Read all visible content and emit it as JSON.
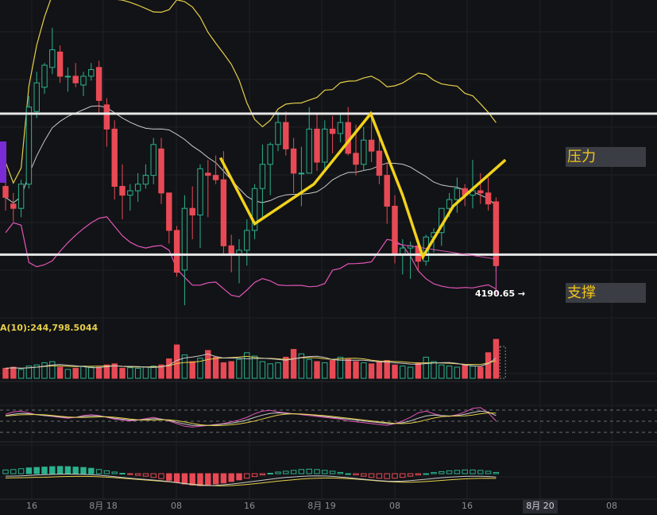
{
  "chart_data": [
    {
      "type": "candlestick",
      "panel": "price",
      "title": "",
      "levels": [
        {
          "name": "resistance",
          "label": "压力",
          "price": 4262
        },
        {
          "name": "support",
          "label": "支撑",
          "price": 4198
        }
      ],
      "last_price_label": "4190.65",
      "ohlc": [
        [
          4229,
          4236,
          4218,
          4224
        ],
        [
          4221,
          4226,
          4213,
          4219
        ],
        [
          4219,
          4232,
          4215,
          4230
        ],
        [
          4230,
          4270,
          4228,
          4265
        ],
        [
          4263,
          4281,
          4260,
          4276
        ],
        [
          4274,
          4285,
          4271,
          4284
        ],
        [
          4283,
          4301,
          4280,
          4291
        ],
        [
          4290,
          4293,
          4276,
          4279
        ],
        [
          4279,
          4283,
          4272,
          4279
        ],
        [
          4279,
          4285,
          4274,
          4276
        ],
        [
          4275,
          4281,
          4270,
          4279
        ],
        [
          4279,
          4285,
          4277,
          4282
        ],
        [
          4283,
          4286,
          4262,
          4268
        ],
        [
          4266,
          4269,
          4247,
          4255
        ],
        [
          4255,
          4259,
          4223,
          4229
        ],
        [
          4229,
          4239,
          4214,
          4225
        ],
        [
          4225,
          4230,
          4218,
          4227
        ],
        [
          4227,
          4235,
          4222,
          4230
        ],
        [
          4230,
          4239,
          4228,
          4234
        ],
        [
          4234,
          4251,
          4230,
          4248
        ],
        [
          4246,
          4251,
          4221,
          4226
        ],
        [
          4226,
          4226,
          4203,
          4209
        ],
        [
          4209,
          4211,
          4188,
          4190
        ],
        [
          4191,
          4225,
          4175,
          4219
        ],
        [
          4219,
          4229,
          4205,
          4216
        ],
        [
          4216,
          4239,
          4201,
          4237
        ],
        [
          4235,
          4241,
          4215,
          4234
        ],
        [
          4234,
          4243,
          4230,
          4232
        ],
        [
          4232,
          4245,
          4198,
          4202
        ],
        [
          4202,
          4207,
          4190,
          4198
        ],
        [
          4198,
          4205,
          4185,
          4200
        ],
        [
          4200,
          4214,
          4193,
          4209
        ],
        [
          4209,
          4230,
          4205,
          4228
        ],
        [
          4228,
          4248,
          4215,
          4239
        ],
        [
          4239,
          4249,
          4225,
          4248
        ],
        [
          4248,
          4263,
          4245,
          4258
        ],
        [
          4258,
          4263,
          4243,
          4246
        ],
        [
          4246,
          4251,
          4226,
          4235
        ],
        [
          4235,
          4247,
          4220,
          4235
        ],
        [
          4235,
          4265,
          4235,
          4255
        ],
        [
          4255,
          4262,
          4236,
          4240
        ],
        [
          4240,
          4259,
          4236,
          4255
        ],
        [
          4255,
          4261,
          4244,
          4253
        ],
        [
          4253,
          4262,
          4249,
          4258
        ],
        [
          4258,
          4265,
          4243,
          4244
        ],
        [
          4244,
          4257,
          4234,
          4239
        ],
        [
          4239,
          4256,
          4236,
          4250
        ],
        [
          4250,
          4260,
          4240,
          4245
        ],
        [
          4245,
          4254,
          4230,
          4234
        ],
        [
          4234,
          4240,
          4212,
          4220
        ],
        [
          4220,
          4225,
          4194,
          4198
        ],
        [
          4198,
          4205,
          4189,
          4201
        ],
        [
          4201,
          4204,
          4187,
          4202
        ],
        [
          4202,
          4205,
          4191,
          4195
        ],
        [
          4195,
          4207,
          4193,
          4206
        ],
        [
          4206,
          4210,
          4199,
          4208
        ],
        [
          4208,
          4219,
          4202,
          4219
        ],
        [
          4219,
          4226,
          4215,
          4223
        ],
        [
          4223,
          4233,
          4217,
          4228
        ],
        [
          4228,
          4230,
          4220,
          4225
        ],
        [
          4225,
          4241,
          4219,
          4227
        ],
        [
          4227,
          4235,
          4221,
          4226
        ],
        [
          4226,
          4233,
          4218,
          4221
        ],
        [
          4222,
          4224,
          4190,
          4193
        ]
      ],
      "drawing_lines": [
        [
          4254,
          4248,
          4243,
          4239,
          4234
        ],
        [
          4196,
          4199,
          4201,
          4204,
          4207
        ]
      ],
      "zigzag": [
        4242,
        4212,
        4198,
        4230,
        4262,
        4225,
        4197,
        4220,
        4241
      ],
      "x_ticks": [
        "16",
        "8月 18",
        "08",
        "16",
        "8月 19",
        "08",
        "16",
        "8月 20",
        "08"
      ]
    },
    {
      "type": "bar",
      "panel": "volume",
      "label": "A(10):244,798.5044",
      "values": [
        0.18,
        0.2,
        0.16,
        0.22,
        0.24,
        0.28,
        0.3,
        0.2,
        0.16,
        0.18,
        0.22,
        0.2,
        0.2,
        0.24,
        0.26,
        0.18,
        0.19,
        0.18,
        0.2,
        0.22,
        0.24,
        0.35,
        0.6,
        0.42,
        0.3,
        0.36,
        0.5,
        0.38,
        0.28,
        0.3,
        0.34,
        0.46,
        0.4,
        0.3,
        0.26,
        0.28,
        0.38,
        0.52,
        0.44,
        0.34,
        0.3,
        0.28,
        0.32,
        0.38,
        0.34,
        0.3,
        0.28,
        0.26,
        0.3,
        0.32,
        0.24,
        0.22,
        0.2,
        0.28,
        0.38,
        0.3,
        0.24,
        0.22,
        0.2,
        0.24,
        0.22,
        0.2,
        0.46,
        0.7
      ],
      "colors_up_down": [
        "#2bb18e",
        "#e84a55"
      ]
    },
    {
      "type": "line",
      "panel": "oscillator",
      "series": [
        {
          "values": [
            55,
            60,
            62,
            58,
            54,
            52,
            50,
            48,
            46,
            48,
            52,
            54,
            52,
            48,
            44,
            42,
            40,
            42,
            45,
            48,
            44,
            40,
            34,
            28,
            26,
            28,
            30,
            32,
            34,
            38,
            42,
            48,
            56,
            62,
            64,
            60,
            58,
            56,
            54,
            52,
            50,
            48,
            46,
            44,
            40,
            38,
            36,
            34,
            32,
            30,
            34,
            40,
            48,
            58,
            62,
            56,
            52,
            50,
            54,
            60,
            68,
            70,
            58,
            40
          ]
        },
        {
          "values": [
            52,
            55,
            57,
            56,
            54,
            52,
            51,
            49,
            48,
            48,
            50,
            51,
            51,
            49,
            46,
            44,
            42,
            42,
            43,
            45,
            44,
            41,
            37,
            33,
            30,
            30,
            30,
            31,
            33,
            35,
            38,
            42,
            48,
            53,
            57,
            58,
            57,
            56,
            55,
            54,
            52,
            50,
            48,
            46,
            44,
            42,
            40,
            38,
            36,
            34,
            34,
            36,
            40,
            46,
            51,
            53,
            52,
            51,
            52,
            55,
            59,
            62,
            60,
            52
          ]
        }
      ]
    },
    {
      "type": "bar",
      "panel": "macd",
      "values": [
        0.18,
        0.2,
        0.24,
        0.28,
        0.3,
        0.32,
        0.34,
        0.35,
        0.34,
        0.32,
        0.3,
        0.26,
        0.2,
        0.14,
        0.08,
        0.02,
        -0.04,
        -0.08,
        -0.12,
        -0.18,
        -0.24,
        -0.32,
        -0.42,
        -0.5,
        -0.55,
        -0.58,
        -0.55,
        -0.5,
        -0.45,
        -0.38,
        -0.3,
        -0.22,
        -0.14,
        -0.06,
        0.02,
        0.08,
        0.12,
        0.16,
        0.2,
        0.22,
        0.2,
        0.16,
        0.12,
        0.06,
        0.0,
        -0.06,
        -0.12,
        -0.18,
        -0.22,
        -0.24,
        -0.22,
        -0.18,
        -0.12,
        -0.06,
        0.0,
        0.06,
        0.1,
        0.14,
        0.16,
        0.18,
        0.18,
        0.16,
        0.12,
        0.06
      ]
    }
  ],
  "labels": {
    "resistance": "压力",
    "support": "支撑",
    "last_price": "4190.65 →",
    "volume_ma": "A(10):244,798.5044"
  },
  "colors": {
    "background": "#121316",
    "up": "#2bb18e",
    "down": "#e84a55",
    "bands": "#e6cf4a",
    "ma_mid": "#c9c9c9",
    "lower_band": "#e055b8",
    "zigzag": "#f2d21b",
    "level_line": "#e6e6e6",
    "label_text": "#f0c419",
    "label_box": "#3b3d44"
  }
}
